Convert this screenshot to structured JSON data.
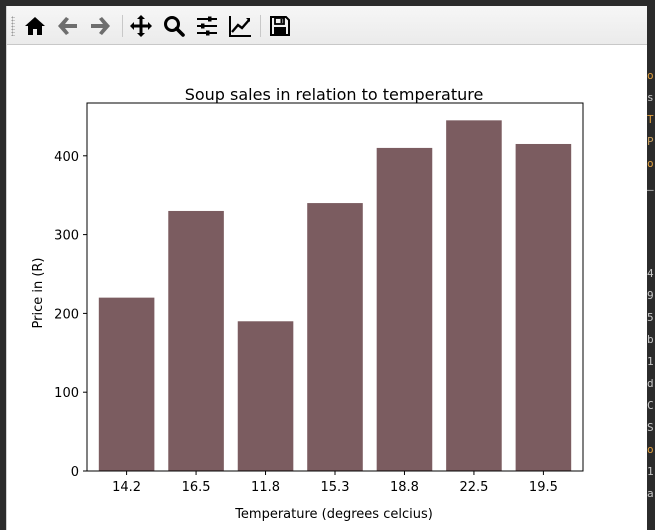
{
  "window": {
    "toolbar": {
      "tools": [
        {
          "name": "home-icon",
          "label": "Home"
        },
        {
          "name": "back-icon",
          "label": "Back"
        },
        {
          "name": "forward-icon",
          "label": "Forward"
        },
        {
          "name": "pan-icon",
          "label": "Pan"
        },
        {
          "name": "zoom-icon",
          "label": "Zoom"
        },
        {
          "name": "configure-subplots-icon",
          "label": "Subplots"
        },
        {
          "name": "edit-axis-icon",
          "label": "Customize"
        },
        {
          "name": "save-icon",
          "label": "Save"
        }
      ]
    }
  },
  "background_terminal": {
    "chars": [
      {
        "t": "o",
        "color": "#e0a040"
      },
      {
        "t": "s",
        "color": "#c8c8c8"
      },
      {
        "t": "T",
        "color": "#e0a040"
      },
      {
        "t": "P",
        "color": "#c8a060"
      },
      {
        "t": "o",
        "color": "#e0a040"
      },
      {
        "t": "—",
        "color": "#c8c8c8"
      },
      {
        "t": "4",
        "color": "#c8c8c8"
      },
      {
        "t": "9",
        "color": "#c8c8c8"
      },
      {
        "t": "5",
        "color": "#c8c8c8"
      },
      {
        "t": "b",
        "color": "#c8c8c8"
      },
      {
        "t": "1",
        "color": "#c8c8c8"
      },
      {
        "t": "d",
        "color": "#c8c8c8"
      },
      {
        "t": "C",
        "color": "#c8c8c8"
      },
      {
        "t": "S",
        "color": "#c8c8c8"
      },
      {
        "t": "o",
        "color": "#e0a040"
      },
      {
        "t": "1",
        "color": "#c8c8c8"
      },
      {
        "t": "a",
        "color": "#c8c8c8"
      }
    ]
  },
  "chart_data": {
    "type": "bar",
    "title": "Soup sales in relation to temperature",
    "xlabel": "Temperature (degrees celcius)",
    "ylabel": "Price in (R)",
    "categories": [
      "14.2",
      "16.5",
      "11.8",
      "15.3",
      "18.8",
      "22.5",
      "19.5"
    ],
    "values": [
      220,
      330,
      190,
      340,
      410,
      445,
      415
    ],
    "ylim": [
      0,
      467
    ],
    "yticks": [
      0,
      100,
      200,
      300,
      400
    ],
    "bar_color": "#7b5c60",
    "grid": false
  }
}
